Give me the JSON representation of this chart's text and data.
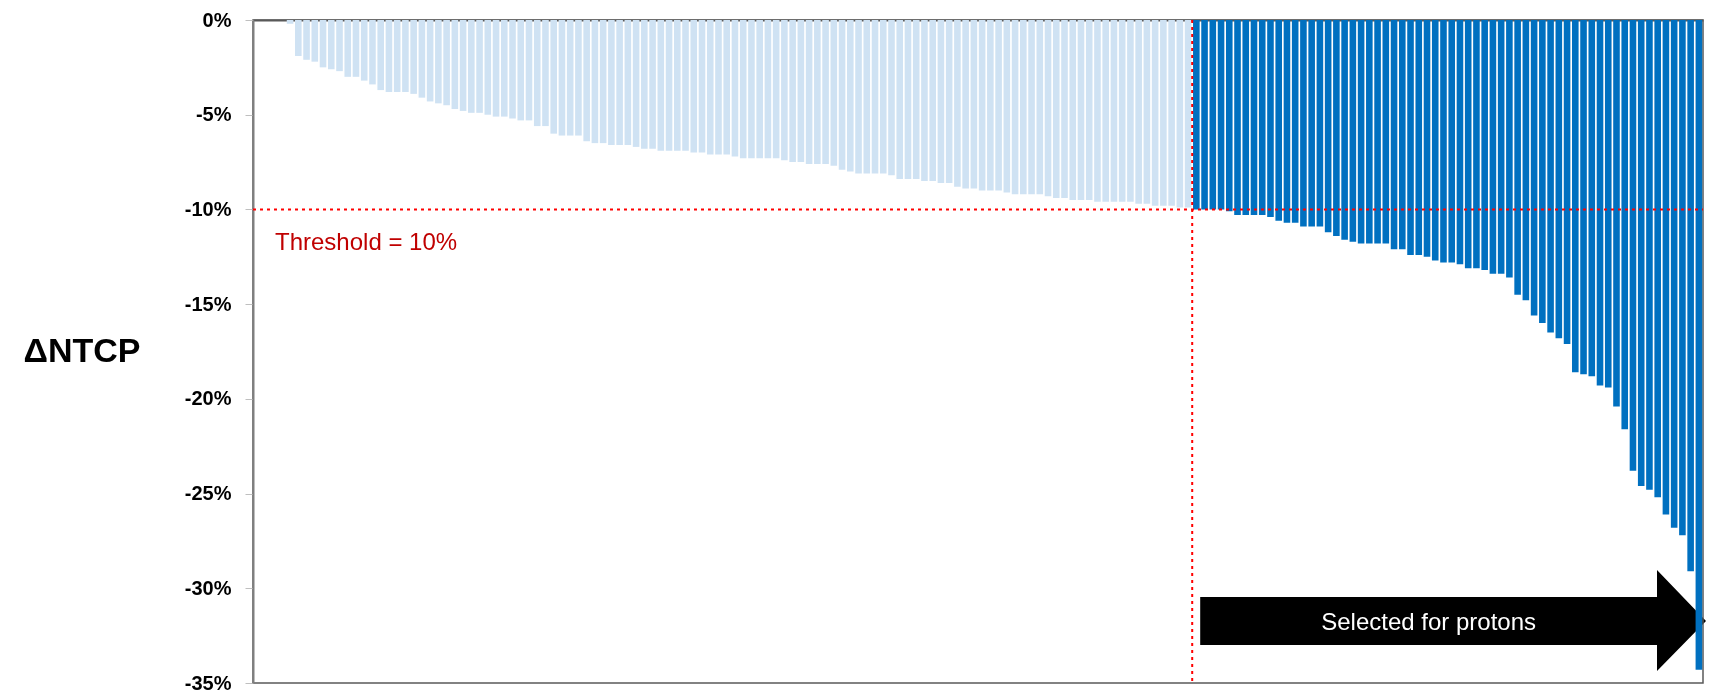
{
  "chart_data": {
    "type": "bar",
    "ylabel": "ΔNTCP",
    "categories": [
      null,
      null,
      null,
      null,
      null,
      null,
      null,
      null,
      null,
      null,
      null,
      null,
      null,
      null,
      null,
      null,
      null,
      null,
      null,
      null,
      null,
      null,
      null,
      null,
      null,
      null,
      null,
      null,
      null,
      null,
      null,
      null,
      null,
      null,
      null,
      null,
      null,
      null,
      null,
      null,
      null,
      null,
      null,
      null,
      null,
      null,
      null,
      null,
      null,
      null,
      null,
      null,
      null,
      null,
      null,
      null,
      null,
      null,
      null,
      null,
      null,
      null,
      null,
      null,
      null,
      null,
      null,
      null,
      null,
      null,
      null,
      null,
      null,
      null,
      null,
      null,
      null,
      null,
      null,
      null,
      null,
      null,
      null,
      null,
      null,
      null,
      null,
      null,
      null,
      null,
      null,
      null,
      null,
      null,
      null,
      null,
      null,
      null,
      null,
      null,
      null,
      null,
      null,
      null,
      null,
      null,
      null,
      null,
      null,
      null,
      null,
      null,
      null,
      null,
      null,
      null,
      null,
      null,
      null,
      null,
      null,
      null,
      null,
      null,
      null,
      null,
      null,
      null,
      null,
      null,
      null,
      null,
      null,
      null,
      null,
      null,
      null,
      null,
      null,
      null,
      null,
      null,
      null,
      null,
      null,
      null,
      null,
      null,
      null,
      null,
      null,
      null,
      null,
      null,
      null,
      null,
      null,
      null,
      null,
      null,
      null,
      null,
      null,
      null,
      null,
      null,
      null,
      null,
      null,
      null,
      null,
      null,
      null,
      null,
      null,
      null
    ],
    "values": [
      null,
      null,
      null,
      null,
      -0.2,
      -1.9,
      -2.1,
      -2.2,
      -2.5,
      -2.6,
      -2.7,
      -3.0,
      -3.0,
      -3.2,
      -3.4,
      -3.7,
      -3.8,
      -3.8,
      -3.8,
      -3.9,
      -4.1,
      -4.3,
      -4.4,
      -4.5,
      -4.7,
      -4.8,
      -4.9,
      -4.9,
      -5.0,
      -5.1,
      -5.1,
      -5.2,
      -5.3,
      -5.3,
      -5.6,
      -5.6,
      -6.0,
      -6.1,
      -6.1,
      -6.1,
      -6.4,
      -6.5,
      -6.5,
      -6.6,
      -6.6,
      -6.6,
      -6.7,
      -6.8,
      -6.8,
      -6.9,
      -6.9,
      -6.9,
      -6.9,
      -7.0,
      -7.0,
      -7.1,
      -7.1,
      -7.1,
      -7.2,
      -7.3,
      -7.3,
      -7.3,
      -7.3,
      -7.3,
      -7.4,
      -7.5,
      -7.5,
      -7.6,
      -7.6,
      -7.6,
      -7.7,
      -7.9,
      -8.0,
      -8.1,
      -8.1,
      -8.1,
      -8.1,
      -8.2,
      -8.4,
      -8.4,
      -8.4,
      -8.5,
      -8.5,
      -8.6,
      -8.6,
      -8.8,
      -8.9,
      -8.9,
      -9.0,
      -9.0,
      -9.0,
      -9.1,
      -9.2,
      -9.2,
      -9.2,
      -9.2,
      -9.3,
      -9.4,
      -9.4,
      -9.5,
      -9.5,
      -9.5,
      -9.6,
      -9.6,
      -9.6,
      -9.6,
      -9.6,
      -9.7,
      -9.7,
      -9.8,
      -9.8,
      -9.8,
      -9.9,
      -9.9,
      -10.0,
      -10.0,
      -10.0,
      -10.0,
      -10.1,
      -10.3,
      -10.3,
      -10.3,
      -10.3,
      -10.4,
      -10.6,
      -10.7,
      -10.7,
      -10.9,
      -10.9,
      -10.9,
      -11.2,
      -11.4,
      -11.6,
      -11.7,
      -11.8,
      -11.8,
      -11.8,
      -11.8,
      -12.1,
      -12.1,
      -12.4,
      -12.4,
      -12.5,
      -12.7,
      -12.8,
      -12.8,
      -12.9,
      -13.1,
      -13.1,
      -13.2,
      -13.4,
      -13.4,
      -13.6,
      -14.5,
      -14.8,
      -15.6,
      -16.0,
      -16.5,
      -16.8,
      -17.1,
      -18.6,
      -18.7,
      -18.8,
      -19.3,
      -19.4,
      -20.4,
      -21.6,
      -23.8,
      -24.6,
      -24.8,
      -25.2,
      -26.1,
      -26.8,
      -27.2,
      -29.1,
      -34.3
    ],
    "colors": [
      "#cfe2f3",
      "#cfe2f3",
      "#cfe2f3",
      "#cfe2f3",
      "#cfe2f3",
      "#cfe2f3",
      "#cfe2f3",
      "#cfe2f3",
      "#cfe2f3",
      "#cfe2f3",
      "#cfe2f3",
      "#cfe2f3",
      "#cfe2f3",
      "#cfe2f3",
      "#cfe2f3",
      "#cfe2f3",
      "#cfe2f3",
      "#cfe2f3",
      "#cfe2f3",
      "#cfe2f3",
      "#cfe2f3",
      "#cfe2f3",
      "#cfe2f3",
      "#cfe2f3",
      "#cfe2f3",
      "#cfe2f3",
      "#cfe2f3",
      "#cfe2f3",
      "#cfe2f3",
      "#cfe2f3",
      "#cfe2f3",
      "#cfe2f3",
      "#cfe2f3",
      "#cfe2f3",
      "#cfe2f3",
      "#cfe2f3",
      "#cfe2f3",
      "#cfe2f3",
      "#cfe2f3",
      "#cfe2f3",
      "#cfe2f3",
      "#cfe2f3",
      "#cfe2f3",
      "#cfe2f3",
      "#cfe2f3",
      "#cfe2f3",
      "#cfe2f3",
      "#cfe2f3",
      "#cfe2f3",
      "#cfe2f3",
      "#cfe2f3",
      "#cfe2f3",
      "#cfe2f3",
      "#cfe2f3",
      "#cfe2f3",
      "#cfe2f3",
      "#cfe2f3",
      "#cfe2f3",
      "#cfe2f3",
      "#cfe2f3",
      "#cfe2f3",
      "#cfe2f3",
      "#cfe2f3",
      "#cfe2f3",
      "#cfe2f3",
      "#cfe2f3",
      "#cfe2f3",
      "#cfe2f3",
      "#cfe2f3",
      "#cfe2f3",
      "#cfe2f3",
      "#cfe2f3",
      "#cfe2f3",
      "#cfe2f3",
      "#cfe2f3",
      "#cfe2f3",
      "#cfe2f3",
      "#cfe2f3",
      "#cfe2f3",
      "#cfe2f3",
      "#cfe2f3",
      "#cfe2f3",
      "#cfe2f3",
      "#cfe2f3",
      "#cfe2f3",
      "#cfe2f3",
      "#cfe2f3",
      "#cfe2f3",
      "#cfe2f3",
      "#cfe2f3",
      "#cfe2f3",
      "#cfe2f3",
      "#cfe2f3",
      "#cfe2f3",
      "#cfe2f3",
      "#cfe2f3",
      "#cfe2f3",
      "#cfe2f3",
      "#cfe2f3",
      "#cfe2f3",
      "#cfe2f3",
      "#cfe2f3",
      "#cfe2f3",
      "#cfe2f3",
      "#cfe2f3",
      "#cfe2f3",
      "#cfe2f3",
      "#cfe2f3",
      "#cfe2f3",
      "#cfe2f3",
      "#cfe2f3",
      "#cfe2f3",
      "#cfe2f3",
      "#cfe2f3",
      "#0070c0",
      "#0070c0",
      "#0070c0",
      "#0070c0",
      "#0070c0",
      "#0070c0",
      "#0070c0",
      "#0070c0",
      "#0070c0",
      "#0070c0",
      "#0070c0",
      "#0070c0",
      "#0070c0",
      "#0070c0",
      "#0070c0",
      "#0070c0",
      "#0070c0",
      "#0070c0",
      "#0070c0",
      "#0070c0",
      "#0070c0",
      "#0070c0",
      "#0070c0",
      "#0070c0",
      "#0070c0",
      "#0070c0",
      "#0070c0",
      "#0070c0",
      "#0070c0",
      "#0070c0",
      "#0070c0",
      "#0070c0",
      "#0070c0",
      "#0070c0",
      "#0070c0",
      "#0070c0",
      "#0070c0",
      "#0070c0",
      "#0070c0",
      "#0070c0",
      "#0070c0",
      "#0070c0",
      "#0070c0",
      "#0070c0",
      "#0070c0",
      "#0070c0",
      "#0070c0",
      "#0070c0",
      "#0070c0",
      "#0070c0",
      "#0070c0",
      "#0070c0",
      "#0070c0",
      "#0070c0",
      "#0070c0",
      "#0070c0",
      "#0070c0",
      "#0070c0",
      "#0070c0",
      "#0070c0",
      "#0070c0",
      "#0070c0"
    ],
    "ylim": [
      -35,
      0
    ],
    "yticks": [
      {
        "value": 0,
        "label": "0%"
      },
      {
        "value": -5,
        "label": "-5%"
      },
      {
        "value": -10,
        "label": "-10%"
      },
      {
        "value": -15,
        "label": "-15%"
      },
      {
        "value": -20,
        "label": "-20%"
      },
      {
        "value": -25,
        "label": "-25%"
      },
      {
        "value": -30,
        "label": "-30%"
      },
      {
        "value": -35,
        "label": "-35%"
      }
    ],
    "tick_labels": "y",
    "ref_lines": [
      {
        "axis": "y",
        "value": -10,
        "color": "#ff0000",
        "line_style": "dotted"
      }
    ],
    "annotations": [
      "Threshold = 10%",
      "Selected for protons"
    ]
  }
}
